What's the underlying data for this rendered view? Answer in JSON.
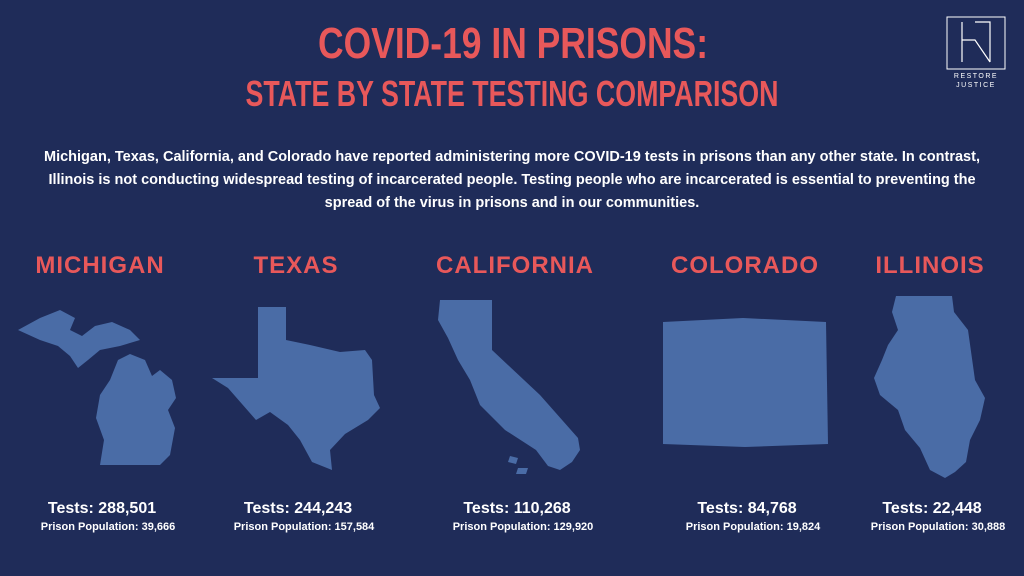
{
  "header": {
    "title": "COVID-19 IN PRISONS:",
    "subtitle": "STATE BY STATE TESTING COMPARISON"
  },
  "logo": {
    "line1": "RESTORE",
    "line2": "JUSTICE"
  },
  "intro": "Michigan, Texas, California, and Colorado have reported administering more COVID-19 tests in prisons than any other state. In contrast, Illinois is not conducting widespread testing of incarcerated people. Testing people who are incarcerated is essential to preventing the spread of the virus in prisons and in our communities.",
  "states": [
    {
      "name": "MICHIGAN",
      "tests": "Tests: 288,501",
      "population": "Prison Population: 39,666"
    },
    {
      "name": "TEXAS",
      "tests": "Tests: 244,243",
      "population": "Prison Population: 157,584"
    },
    {
      "name": "CALIFORNIA",
      "tests": "Tests: 110,268",
      "population": "Prison Population: 129,920"
    },
    {
      "name": "COLORADO",
      "tests": "Tests: 84,768",
      "population": "Prison Population: 19,824"
    },
    {
      "name": "ILLINOIS",
      "tests": "Tests: 22,448",
      "population": "Prison Population: 30,888"
    }
  ]
}
